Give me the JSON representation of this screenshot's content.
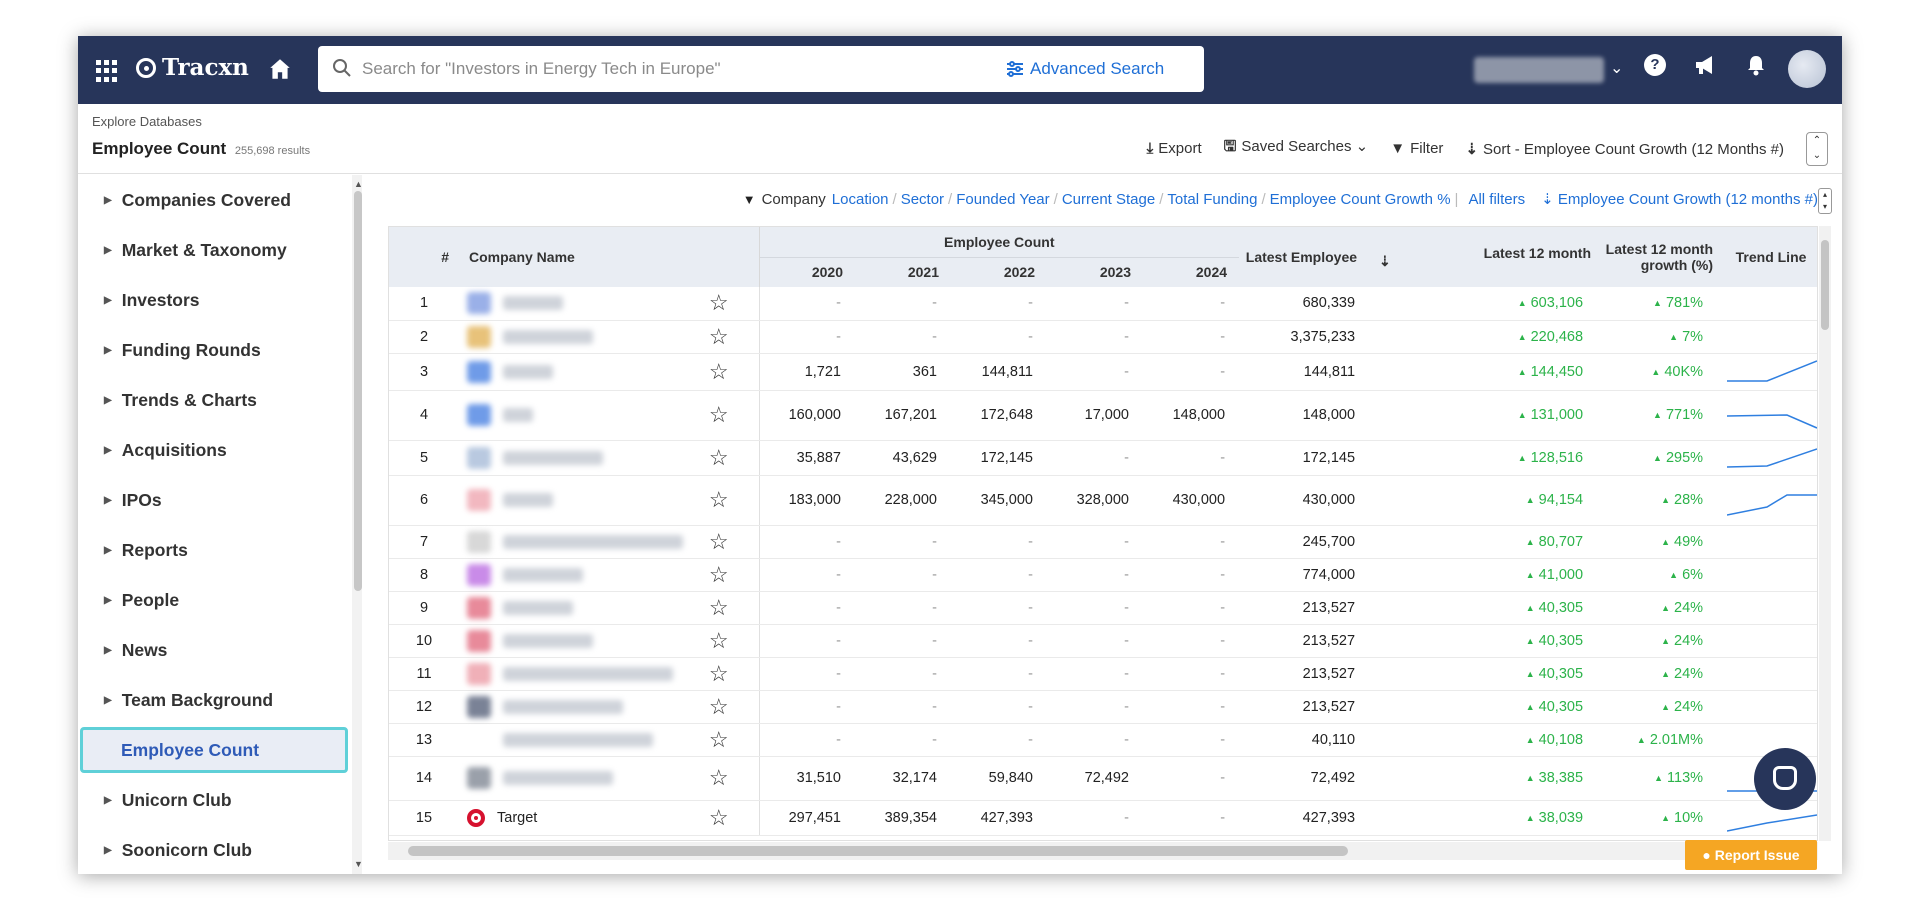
{
  "nav": {
    "logo": "Tracxn",
    "search_placeholder": "Search for \"Investors in Energy Tech in Europe\"",
    "advanced_search": "Advanced Search"
  },
  "header": {
    "breadcrumb": "Explore Databases",
    "title": "Employee Count",
    "results": "255,698 results",
    "export": "Export",
    "saved_searches": "Saved Searches",
    "filter": "Filter",
    "sort": "Sort",
    "sort_value": "- Employee Count Growth (12 Months #)"
  },
  "sidebar": {
    "items": [
      {
        "label": "Companies Covered",
        "active": false
      },
      {
        "label": "Market & Taxonomy",
        "active": false
      },
      {
        "label": "Investors",
        "active": false
      },
      {
        "label": "Funding Rounds",
        "active": false
      },
      {
        "label": "Trends & Charts",
        "active": false
      },
      {
        "label": "Acquisitions",
        "active": false
      },
      {
        "label": "IPOs",
        "active": false
      },
      {
        "label": "Reports",
        "active": false
      },
      {
        "label": "People",
        "active": false
      },
      {
        "label": "News",
        "active": false
      },
      {
        "label": "Team Background",
        "active": false
      },
      {
        "label": "Employee Count",
        "active": true
      },
      {
        "label": "Unicorn Club",
        "active": false
      },
      {
        "label": "Soonicorn Club",
        "active": false
      }
    ]
  },
  "filterbar": {
    "company_label": "Company",
    "links": [
      "Location",
      "Sector",
      "Founded Year",
      "Current Stage",
      "Total Funding",
      "Employee Count Growth %"
    ],
    "all_filters": "All filters",
    "sort_link": "Employee Count Growth (12 months #)"
  },
  "table": {
    "headers": {
      "num": "#",
      "company": "Company Name",
      "employee_count": "Employee Count",
      "years": [
        "2020",
        "2021",
        "2022",
        "2023",
        "2024"
      ],
      "latest_employee": "Latest Employee",
      "latest_12": "Latest 12 month",
      "growth": "Latest 12 month growth (%)",
      "trend": "Trend Line"
    },
    "rows": [
      {
        "n": "1",
        "name": "",
        "y": [
          "-",
          "-",
          "-",
          "-",
          "-"
        ],
        "latest": "680,339",
        "m12": "603,106",
        "g": "781%"
      },
      {
        "n": "2",
        "name": "",
        "y": [
          "-",
          "-",
          "-",
          "-",
          "-"
        ],
        "latest": "3,375,233",
        "m12": "220,468",
        "g": "7%"
      },
      {
        "n": "3",
        "name": "",
        "y": [
          "1,721",
          "361",
          "144,811",
          "-",
          "-"
        ],
        "latest": "144,811",
        "m12": "144,450",
        "g": "40K%"
      },
      {
        "n": "4",
        "name": "",
        "y": [
          "160,000",
          "167,201",
          "172,648",
          "17,000",
          "148,000"
        ],
        "latest": "148,000",
        "m12": "131,000",
        "g": "771%"
      },
      {
        "n": "5",
        "name": "",
        "y": [
          "35,887",
          "43,629",
          "172,145",
          "-",
          "-"
        ],
        "latest": "172,145",
        "m12": "128,516",
        "g": "295%"
      },
      {
        "n": "6",
        "name": "",
        "y": [
          "183,000",
          "228,000",
          "345,000",
          "328,000",
          "430,000"
        ],
        "latest": "430,000",
        "m12": "94,154",
        "g": "28%"
      },
      {
        "n": "7",
        "name": "",
        "y": [
          "-",
          "-",
          "-",
          "-",
          "-"
        ],
        "latest": "245,700",
        "m12": "80,707",
        "g": "49%"
      },
      {
        "n": "8",
        "name": "",
        "y": [
          "-",
          "-",
          "-",
          "-",
          "-"
        ],
        "latest": "774,000",
        "m12": "41,000",
        "g": "6%"
      },
      {
        "n": "9",
        "name": "",
        "y": [
          "-",
          "-",
          "-",
          "-",
          "-"
        ],
        "latest": "213,527",
        "m12": "40,305",
        "g": "24%"
      },
      {
        "n": "10",
        "name": "",
        "y": [
          "-",
          "-",
          "-",
          "-",
          "-"
        ],
        "latest": "213,527",
        "m12": "40,305",
        "g": "24%"
      },
      {
        "n": "11",
        "name": "",
        "y": [
          "-",
          "-",
          "-",
          "-",
          "-"
        ],
        "latest": "213,527",
        "m12": "40,305",
        "g": "24%"
      },
      {
        "n": "12",
        "name": "",
        "y": [
          "-",
          "-",
          "-",
          "-",
          "-"
        ],
        "latest": "213,527",
        "m12": "40,305",
        "g": "24%"
      },
      {
        "n": "13",
        "name": "",
        "y": [
          "-",
          "-",
          "-",
          "-",
          "-"
        ],
        "latest": "40,110",
        "m12": "40,108",
        "g": "2.01M%"
      },
      {
        "n": "14",
        "name": "",
        "y": [
          "31,510",
          "32,174",
          "59,840",
          "72,492",
          "-"
        ],
        "latest": "72,492",
        "m12": "38,385",
        "g": "113%"
      },
      {
        "n": "15",
        "name": "Target",
        "y": [
          "297,451",
          "389,354",
          "427,393",
          "-",
          "-"
        ],
        "latest": "427,393",
        "m12": "38,039",
        "g": "10%"
      }
    ]
  },
  "report_issue": "Report Issue",
  "colors": {
    "nav_bg": "#27355a",
    "link": "#1f6fd6",
    "growth": "#2cb34a",
    "active_border": "#5fd0d8"
  }
}
